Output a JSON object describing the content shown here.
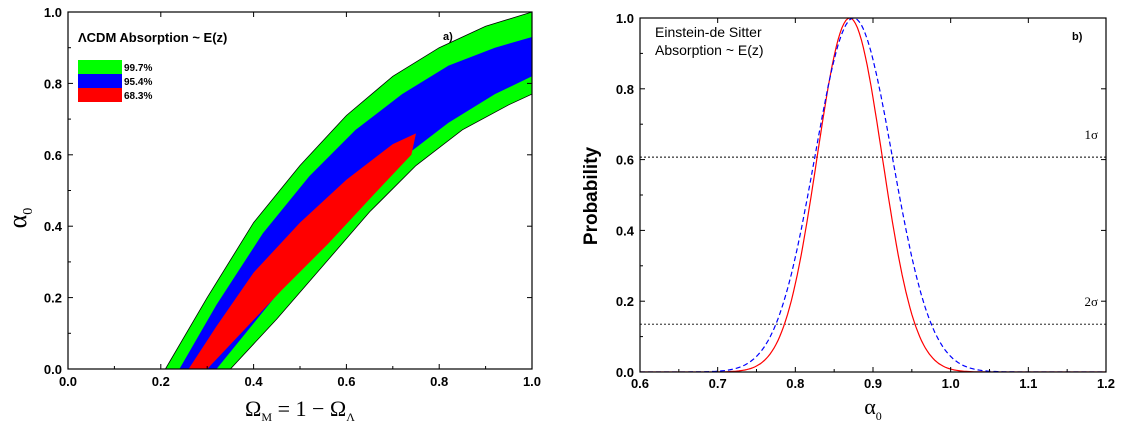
{
  "chart_data": [
    {
      "panel": "a",
      "type": "contour",
      "title": "ΛCDM Absorption ~ E(z)",
      "panel_label": "a)",
      "xlabel": "Ω_M = 1 − Ω_Λ",
      "ylabel": "α_0",
      "xlim": [
        0.0,
        1.0
      ],
      "ylim": [
        0.0,
        1.0
      ],
      "xticks": [
        "0.0",
        "0.2",
        "0.4",
        "0.6",
        "0.8",
        "1.0"
      ],
      "yticks": [
        "0.0",
        "0.2",
        "0.4",
        "0.6",
        "0.8",
        "1.0"
      ],
      "legend_position": "top-left",
      "series": [
        {
          "name": "99.7%",
          "color": "#00ff00",
          "upper": [
            [
              0.21,
              0.0
            ],
            [
              0.3,
              0.2
            ],
            [
              0.4,
              0.41
            ],
            [
              0.5,
              0.57
            ],
            [
              0.6,
              0.71
            ],
            [
              0.7,
              0.82
            ],
            [
              0.8,
              0.9
            ],
            [
              0.9,
              0.96
            ],
            [
              1.0,
              1.0
            ]
          ],
          "lower": [
            [
              0.35,
              0.0
            ],
            [
              0.45,
              0.14
            ],
            [
              0.55,
              0.29
            ],
            [
              0.65,
              0.44
            ],
            [
              0.75,
              0.57
            ],
            [
              0.85,
              0.67
            ],
            [
              0.95,
              0.74
            ],
            [
              1.0,
              0.77
            ]
          ]
        },
        {
          "name": "95.4%",
          "color": "#0000ff",
          "upper": [
            [
              0.24,
              0.0
            ],
            [
              0.32,
              0.18
            ],
            [
              0.42,
              0.38
            ],
            [
              0.52,
              0.54
            ],
            [
              0.62,
              0.67
            ],
            [
              0.72,
              0.77
            ],
            [
              0.82,
              0.85
            ],
            [
              0.92,
              0.9
            ],
            [
              1.0,
              0.93
            ]
          ],
          "lower": [
            [
              0.32,
              0.0
            ],
            [
              0.42,
              0.16
            ],
            [
              0.52,
              0.32
            ],
            [
              0.62,
              0.46
            ],
            [
              0.72,
              0.59
            ],
            [
              0.82,
              0.69
            ],
            [
              0.92,
              0.77
            ],
            [
              1.0,
              0.82
            ]
          ]
        },
        {
          "name": "68.3%",
          "color": "#ff0000",
          "upper": [
            [
              0.26,
              0.0
            ],
            [
              0.32,
              0.12
            ],
            [
              0.4,
              0.27
            ],
            [
              0.5,
              0.41
            ],
            [
              0.6,
              0.53
            ],
            [
              0.7,
              0.63
            ],
            [
              0.75,
              0.66
            ]
          ],
          "lower": [
            [
              0.3,
              0.0
            ],
            [
              0.38,
              0.11
            ],
            [
              0.46,
              0.22
            ],
            [
              0.56,
              0.35
            ],
            [
              0.66,
              0.49
            ],
            [
              0.74,
              0.6
            ],
            [
              0.75,
              0.66
            ]
          ]
        }
      ]
    },
    {
      "panel": "b",
      "type": "line",
      "title": "Einstein-de Sitter",
      "subtitle": "Absorption ~ E(z)",
      "panel_label": "b)",
      "xlabel": "α_0",
      "ylabel": "Probability",
      "xlim": [
        0.6,
        1.2
      ],
      "ylim": [
        0.0,
        1.0
      ],
      "xticks": [
        "0.6",
        "0.7",
        "0.8",
        "0.9",
        "1.0",
        "1.1",
        "1.2"
      ],
      "yticks": [
        "0.0",
        "0.2",
        "0.4",
        "0.6",
        "0.8",
        "1.0"
      ],
      "series": [
        {
          "color": "#ff0000",
          "style": "solid",
          "center": 0.87,
          "sigma": 0.042
        },
        {
          "color": "#0000ff",
          "style": "dashed",
          "center": 0.875,
          "sigma": 0.05
        }
      ],
      "hlines": [
        {
          "label": "1σ",
          "y": 0.607
        },
        {
          "label": "2σ",
          "y": 0.135
        }
      ]
    }
  ]
}
